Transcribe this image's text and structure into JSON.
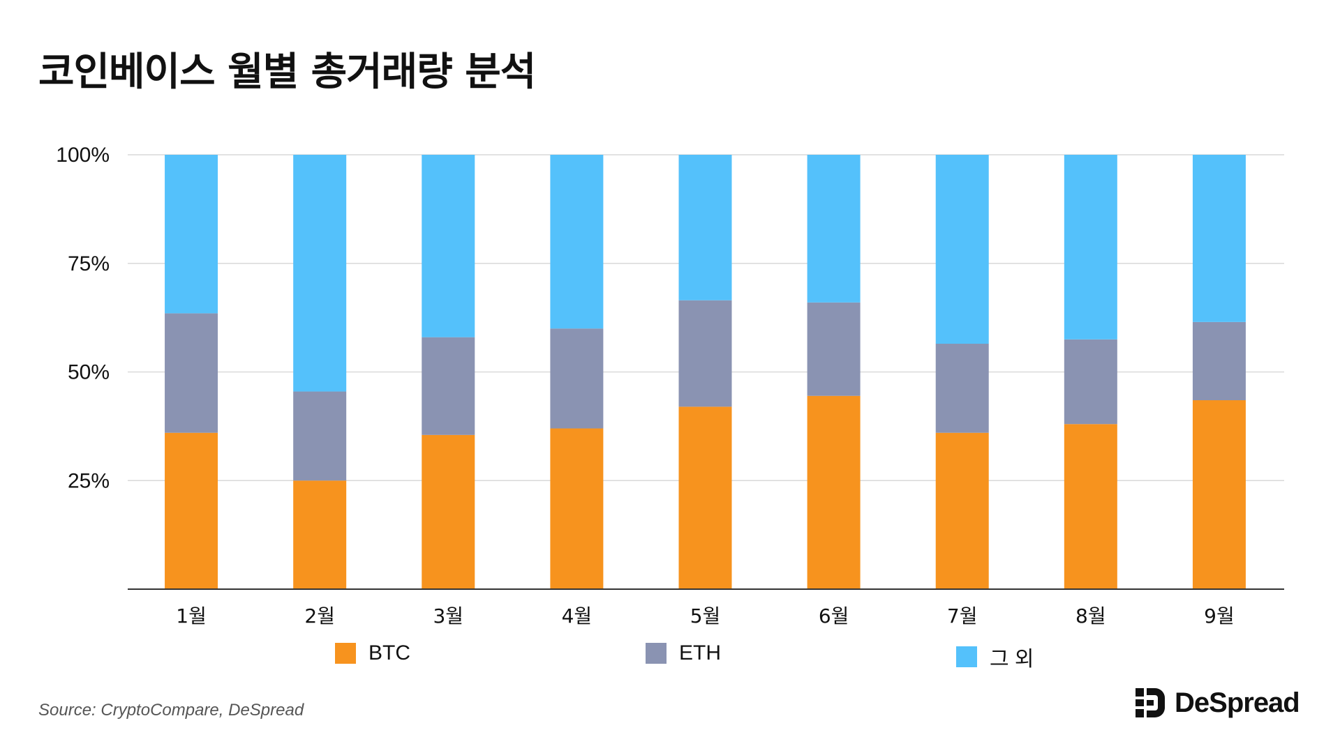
{
  "title": "코인베이스 월별 총거래량 분석",
  "source": "Source: CryptoCompare, DeSpread",
  "brand": {
    "name": "DeSpread"
  },
  "colors": {
    "btc": "#F7931E",
    "eth": "#8A93B2",
    "other": "#54C1FB",
    "grid": "#D9D9D9",
    "axis": "#333333"
  },
  "chart_data": {
    "type": "bar",
    "stacked": true,
    "categories": [
      "1월",
      "2월",
      "3월",
      "4월",
      "5월",
      "6월",
      "7월",
      "8월",
      "9월"
    ],
    "series": [
      {
        "name": "BTC",
        "values": [
          36,
          25,
          35.5,
          37,
          42,
          44.5,
          36,
          38,
          43.5
        ]
      },
      {
        "name": "ETH",
        "values": [
          27.5,
          20.5,
          22.5,
          23,
          24.5,
          21.5,
          20.5,
          19.5,
          18
        ]
      },
      {
        "name": "그 외",
        "values": [
          36.5,
          54.5,
          42,
          40,
          33.5,
          34,
          43.5,
          42.5,
          38.5
        ]
      }
    ],
    "yticks": [
      "100%",
      "75%",
      "50%",
      "25%"
    ],
    "ytick_values": [
      100,
      75,
      50,
      25
    ],
    "ylim": [
      0,
      100
    ],
    "grid": true,
    "legend_position": "bottom"
  }
}
